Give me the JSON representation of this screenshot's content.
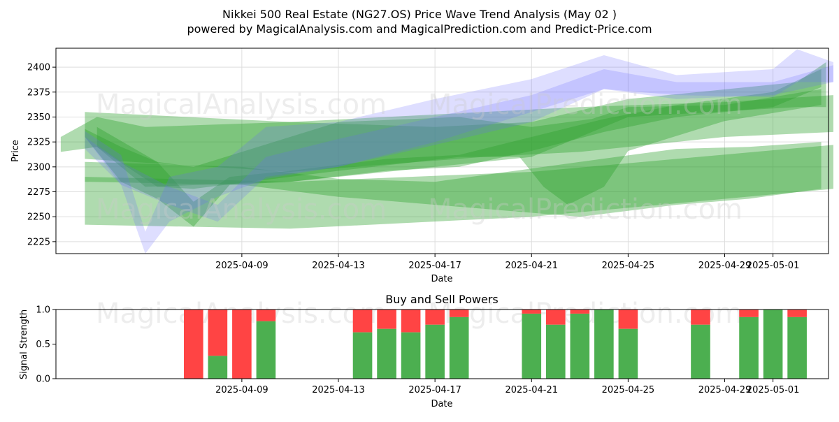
{
  "figure": {
    "title_line1": "Nikkei 500 Real Estate (NG27.OS) Price Wave Trend Analysis (May 02 )",
    "title_line2": "powered by MagicalAnalysis.com and MagicalPrediction.com and Predict-Price.com",
    "watermark_left": "MagicalAnalysis.com",
    "watermark_right": "MagicalPrediction.com"
  },
  "colors": {
    "green_band": "#2ca02c",
    "blue_band": "#6a6aff",
    "buy": "#4caf50",
    "sell": "#ff4444"
  },
  "chart_data": [
    {
      "type": "area",
      "title": "",
      "xlabel": "Date",
      "ylabel": "Price",
      "x_ticks": [
        "2025-04-09",
        "2025-04-13",
        "2025-04-17",
        "2025-04-21",
        "2025-04-25",
        "2025-04-29",
        "2025-05-01"
      ],
      "x_tick_days": [
        8,
        12,
        16,
        20,
        24,
        28,
        30
      ],
      "y_ticks": [
        2225,
        2250,
        2275,
        2300,
        2325,
        2350,
        2375,
        2400
      ],
      "xlim_days": [
        0.3,
        32.3
      ],
      "ylim": [
        2213,
        2419
      ],
      "grid": true,
      "series": [
        {
          "color": "green",
          "upper": [
            [
              1.5,
              2355
            ],
            [
              10,
              2345
            ],
            [
              18,
              2355
            ],
            [
              22,
              2360
            ],
            [
              28,
              2365
            ],
            [
              32.5,
              2372
            ]
          ],
          "lower": [
            [
              1.5,
              2308
            ],
            [
              10,
              2295
            ],
            [
              18,
              2310
            ],
            [
              22,
              2315
            ],
            [
              28,
              2330
            ],
            [
              32.5,
              2335
            ]
          ]
        },
        {
          "color": "green",
          "upper": [
            [
              1.5,
              2290
            ],
            [
              10,
              2285
            ],
            [
              20,
              2295
            ],
            [
              32.5,
              2322
            ]
          ],
          "lower": [
            [
              1.5,
              2242
            ],
            [
              10,
              2238
            ],
            [
              20,
              2250
            ],
            [
              32.5,
              2278
            ]
          ]
        },
        {
          "color": "green",
          "upper": [
            [
              1.5,
              2305
            ],
            [
              8,
              2300
            ],
            [
              12,
              2288
            ],
            [
              16,
              2285
            ],
            [
              22,
              2305
            ],
            [
              26,
              2318
            ],
            [
              29,
              2320
            ],
            [
              32,
              2325
            ]
          ],
          "lower": [
            [
              1.5,
              2285
            ],
            [
              8,
              2282
            ],
            [
              12,
              2270
            ],
            [
              16,
              2262
            ],
            [
              22,
              2250
            ],
            [
              26,
              2262
            ],
            [
              29,
              2268
            ],
            [
              32,
              2278
            ]
          ]
        },
        {
          "color": "green",
          "upper": [
            [
              0.5,
              2330
            ],
            [
              2,
              2350
            ],
            [
              4,
              2340
            ],
            [
              10,
              2345
            ],
            [
              16,
              2340
            ],
            [
              20,
              2345
            ],
            [
              24,
              2368
            ],
            [
              31,
              2385
            ],
            [
              32.2,
              2405
            ]
          ],
          "lower": [
            [
              0.5,
              2315
            ],
            [
              2,
              2320
            ],
            [
              4,
              2280
            ],
            [
              10,
              2285
            ],
            [
              16,
              2300
            ],
            [
              20,
              2310
            ],
            [
              24,
              2350
            ],
            [
              31,
              2360
            ],
            [
              32.2,
              2360
            ]
          ]
        },
        {
          "color": "green",
          "upper": [
            [
              1.5,
              2338
            ],
            [
              3,
              2320
            ],
            [
              4.5,
              2305
            ],
            [
              6,
              2265
            ],
            [
              7.5,
              2290
            ],
            [
              10,
              2296
            ],
            [
              14,
              2308
            ],
            [
              17,
              2312
            ],
            [
              20,
              2330
            ],
            [
              23,
              2348
            ],
            [
              26,
              2362
            ],
            [
              30,
              2375
            ],
            [
              32,
              2398
            ]
          ],
          "lower": [
            [
              1.5,
              2330
            ],
            [
              3,
              2285
            ],
            [
              4.5,
              2268
            ],
            [
              6,
              2240
            ],
            [
              7.5,
              2282
            ],
            [
              10,
              2285
            ],
            [
              14,
              2296
            ],
            [
              17,
              2300
            ],
            [
              20,
              2316
            ],
            [
              23,
              2335
            ],
            [
              26,
              2350
            ],
            [
              30,
              2360
            ],
            [
              32,
              2380
            ]
          ]
        },
        {
          "color": "green",
          "upper": [
            [
              2,
              2340
            ],
            [
              4.5,
              2305
            ],
            [
              6,
              2300
            ],
            [
              12,
              2345
            ],
            [
              17,
              2350
            ],
            [
              20,
              2340
            ],
            [
              22.5,
              2348
            ],
            [
              24,
              2360
            ],
            [
              28,
              2362
            ],
            [
              32,
              2378
            ]
          ],
          "lower": [
            [
              2,
              2320
            ],
            [
              4.5,
              2280
            ],
            [
              6,
              2278
            ],
            [
              12,
              2296
            ],
            [
              17,
              2310
            ],
            [
              19.5,
              2310
            ],
            [
              20.5,
              2280
            ],
            [
              21.5,
              2262
            ],
            [
              23,
              2280
            ],
            [
              24,
              2316
            ],
            [
              28,
              2346
            ],
            [
              32,
              2362
            ]
          ]
        },
        {
          "color": "blue",
          "upper": [
            [
              1.5,
              2336
            ],
            [
              3,
              2312
            ],
            [
              4,
              2235
            ],
            [
              5,
              2290
            ],
            [
              7,
              2300
            ],
            [
              9,
              2340
            ],
            [
              12,
              2345
            ],
            [
              16,
              2368
            ],
            [
              20,
              2388
            ],
            [
              23,
              2412
            ],
            [
              26,
              2392
            ],
            [
              30,
              2398
            ],
            [
              31,
              2418
            ],
            [
              32.5,
              2405
            ]
          ],
          "lower": [
            [
              1.5,
              2330
            ],
            [
              3,
              2282
            ],
            [
              4,
              2213
            ],
            [
              5,
              2245
            ],
            [
              7,
              2270
            ],
            [
              9,
              2288
            ],
            [
              12,
              2300
            ],
            [
              16,
              2322
            ],
            [
              20,
              2345
            ],
            [
              23,
              2378
            ],
            [
              26,
              2372
            ],
            [
              30,
              2370
            ],
            [
              31,
              2385
            ],
            [
              32.5,
              2385
            ]
          ]
        },
        {
          "color": "blue",
          "upper": [
            [
              1.5,
              2330
            ],
            [
              3,
              2305
            ],
            [
              5,
              2280
            ],
            [
              7,
              2262
            ],
            [
              9,
              2310
            ],
            [
              12,
              2328
            ],
            [
              16,
              2350
            ],
            [
              20,
              2372
            ],
            [
              23,
              2398
            ],
            [
              26,
              2385
            ],
            [
              30,
              2385
            ],
            [
              32.5,
              2402
            ]
          ],
          "lower": [
            [
              1.5,
              2318
            ],
            [
              3,
              2282
            ],
            [
              5,
              2262
            ],
            [
              7,
              2245
            ],
            [
              9,
              2290
            ],
            [
              12,
              2300
            ],
            [
              16,
              2325
            ],
            [
              20,
              2355
            ],
            [
              23,
              2378
            ],
            [
              26,
              2368
            ],
            [
              30,
              2372
            ],
            [
              32.5,
              2385
            ]
          ]
        }
      ]
    },
    {
      "type": "bar",
      "title": "Buy and Sell Powers",
      "xlabel": "Date",
      "ylabel": "Signal Strength",
      "x_ticks": [
        "2025-04-09",
        "2025-04-13",
        "2025-04-17",
        "2025-04-21",
        "2025-04-25",
        "2025-04-29",
        "2025-05-01"
      ],
      "x_tick_days": [
        8,
        12,
        16,
        20,
        24,
        28,
        30
      ],
      "y_ticks": [
        "0.0",
        "0.5",
        "1.0"
      ],
      "ylim": [
        0,
        1
      ],
      "series": [
        {
          "name": "buy",
          "color": "green"
        },
        {
          "name": "sell",
          "color": "red"
        }
      ],
      "bars": [
        {
          "day": 6,
          "buy": 0.0
        },
        {
          "day": 7,
          "buy": 0.33
        },
        {
          "day": 8,
          "buy": 0.0
        },
        {
          "day": 9,
          "buy": 0.83
        },
        {
          "day": 13,
          "buy": 0.67
        },
        {
          "day": 14,
          "buy": 0.72
        },
        {
          "day": 15,
          "buy": 0.67
        },
        {
          "day": 16,
          "buy": 0.78
        },
        {
          "day": 17,
          "buy": 0.89
        },
        {
          "day": 20,
          "buy": 0.94
        },
        {
          "day": 21,
          "buy": 0.78
        },
        {
          "day": 22,
          "buy": 0.94
        },
        {
          "day": 23,
          "buy": 1.0
        },
        {
          "day": 24,
          "buy": 0.72
        },
        {
          "day": 27,
          "buy": 0.78
        },
        {
          "day": 29,
          "buy": 0.89
        },
        {
          "day": 30,
          "buy": 1.0
        },
        {
          "day": 31,
          "buy": 0.89
        }
      ]
    }
  ]
}
